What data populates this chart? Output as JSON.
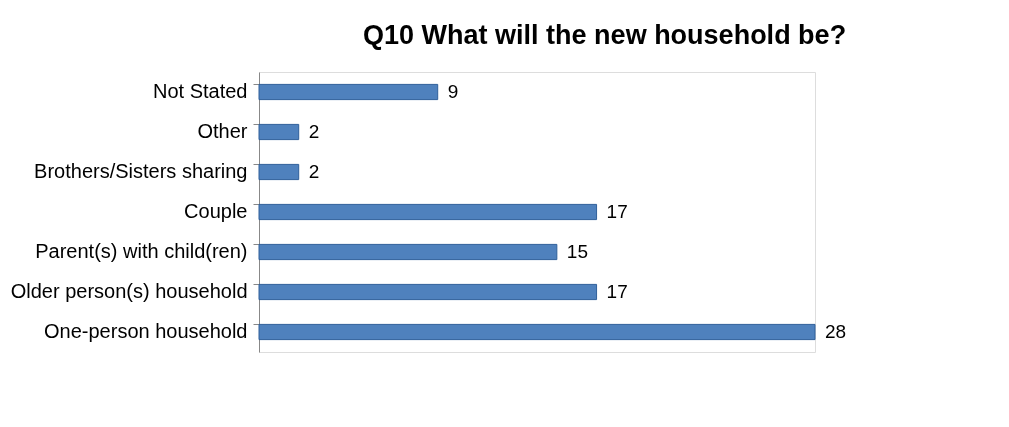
{
  "chart_data": {
    "type": "bar",
    "orientation": "horizontal",
    "title": "Q10 What will the new household be?",
    "categories": [
      "Not Stated",
      "Other",
      "Brothers/Sisters sharing",
      "Couple",
      "Parent(s) with child(ren)",
      "Older person(s) household",
      "One-person household"
    ],
    "values": [
      9,
      2,
      2,
      17,
      15,
      17,
      28
    ],
    "color": "#4f81bd",
    "data_labels": true
  }
}
